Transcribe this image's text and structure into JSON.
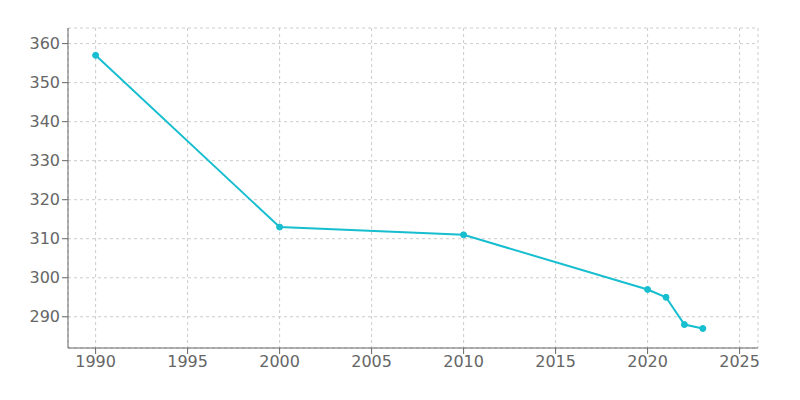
{
  "chart_data": {
    "type": "line",
    "x": [
      1990,
      2000,
      2010,
      2020,
      2021,
      2022,
      2023
    ],
    "values": [
      357,
      313,
      311,
      297,
      295,
      288,
      287
    ],
    "color": "#17becf",
    "marker": "circle",
    "xlim": [
      1988.5,
      2026
    ],
    "ylim": [
      282,
      364
    ],
    "xticks": [
      1990,
      1995,
      2000,
      2005,
      2010,
      2015,
      2020,
      2025
    ],
    "yticks": [
      290,
      300,
      310,
      320,
      330,
      340,
      350,
      360
    ],
    "grid": true
  }
}
